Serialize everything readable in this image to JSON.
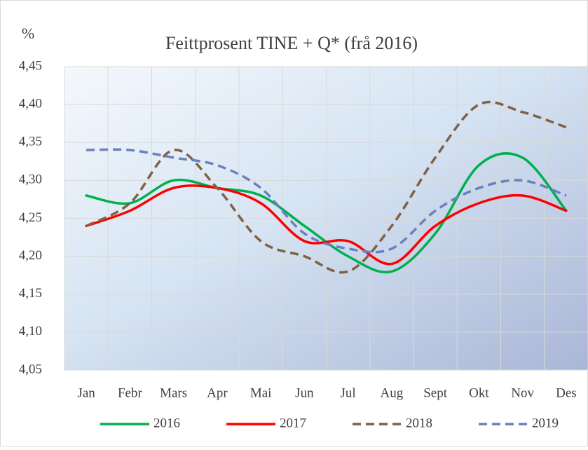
{
  "chart_data": {
    "type": "line",
    "title": "Feittprosent TINE + Q* (frå 2016)",
    "y_label": "%",
    "categories": [
      "Jan",
      "Febr",
      "Mars",
      "Apr",
      "Mai",
      "Jun",
      "Jul",
      "Aug",
      "Sept",
      "Okt",
      "Nov",
      "Des"
    ],
    "series": [
      {
        "name": "2016",
        "color": "#00b050",
        "dashed": false,
        "values": [
          4.28,
          4.27,
          4.3,
          4.29,
          4.28,
          4.24,
          4.2,
          4.18,
          4.23,
          4.32,
          4.33,
          4.26
        ]
      },
      {
        "name": "2017",
        "color": "#ff0000",
        "dashed": false,
        "values": [
          4.24,
          4.26,
          4.29,
          4.29,
          4.27,
          4.22,
          4.22,
          4.19,
          4.24,
          4.27,
          4.28,
          4.26
        ]
      },
      {
        "name": "2018",
        "color": "#7f6145",
        "dashed": true,
        "values": [
          4.24,
          4.27,
          4.34,
          4.29,
          4.22,
          4.2,
          4.18,
          4.24,
          4.33,
          4.4,
          4.39,
          4.37
        ]
      },
      {
        "name": "2019",
        "color": "#6a80bf",
        "dashed": true,
        "values": [
          4.34,
          4.34,
          4.33,
          4.32,
          4.29,
          4.23,
          4.21,
          4.21,
          4.26,
          4.29,
          4.3,
          4.28
        ]
      }
    ],
    "ylim": [
      4.05,
      4.45
    ],
    "yticks": [
      {
        "value": 4.05,
        "label": "4,05"
      },
      {
        "value": 4.1,
        "label": "4,10"
      },
      {
        "value": 4.15,
        "label": "4,15"
      },
      {
        "value": 4.2,
        "label": "4,20"
      },
      {
        "value": 4.25,
        "label": "4,25"
      },
      {
        "value": 4.3,
        "label": "4,30"
      },
      {
        "value": 4.35,
        "label": "4,35"
      },
      {
        "value": 4.4,
        "label": "4,40"
      },
      {
        "value": 4.45,
        "label": "4,45"
      }
    ],
    "grid": true,
    "smooth": true,
    "legend": "bottom"
  }
}
